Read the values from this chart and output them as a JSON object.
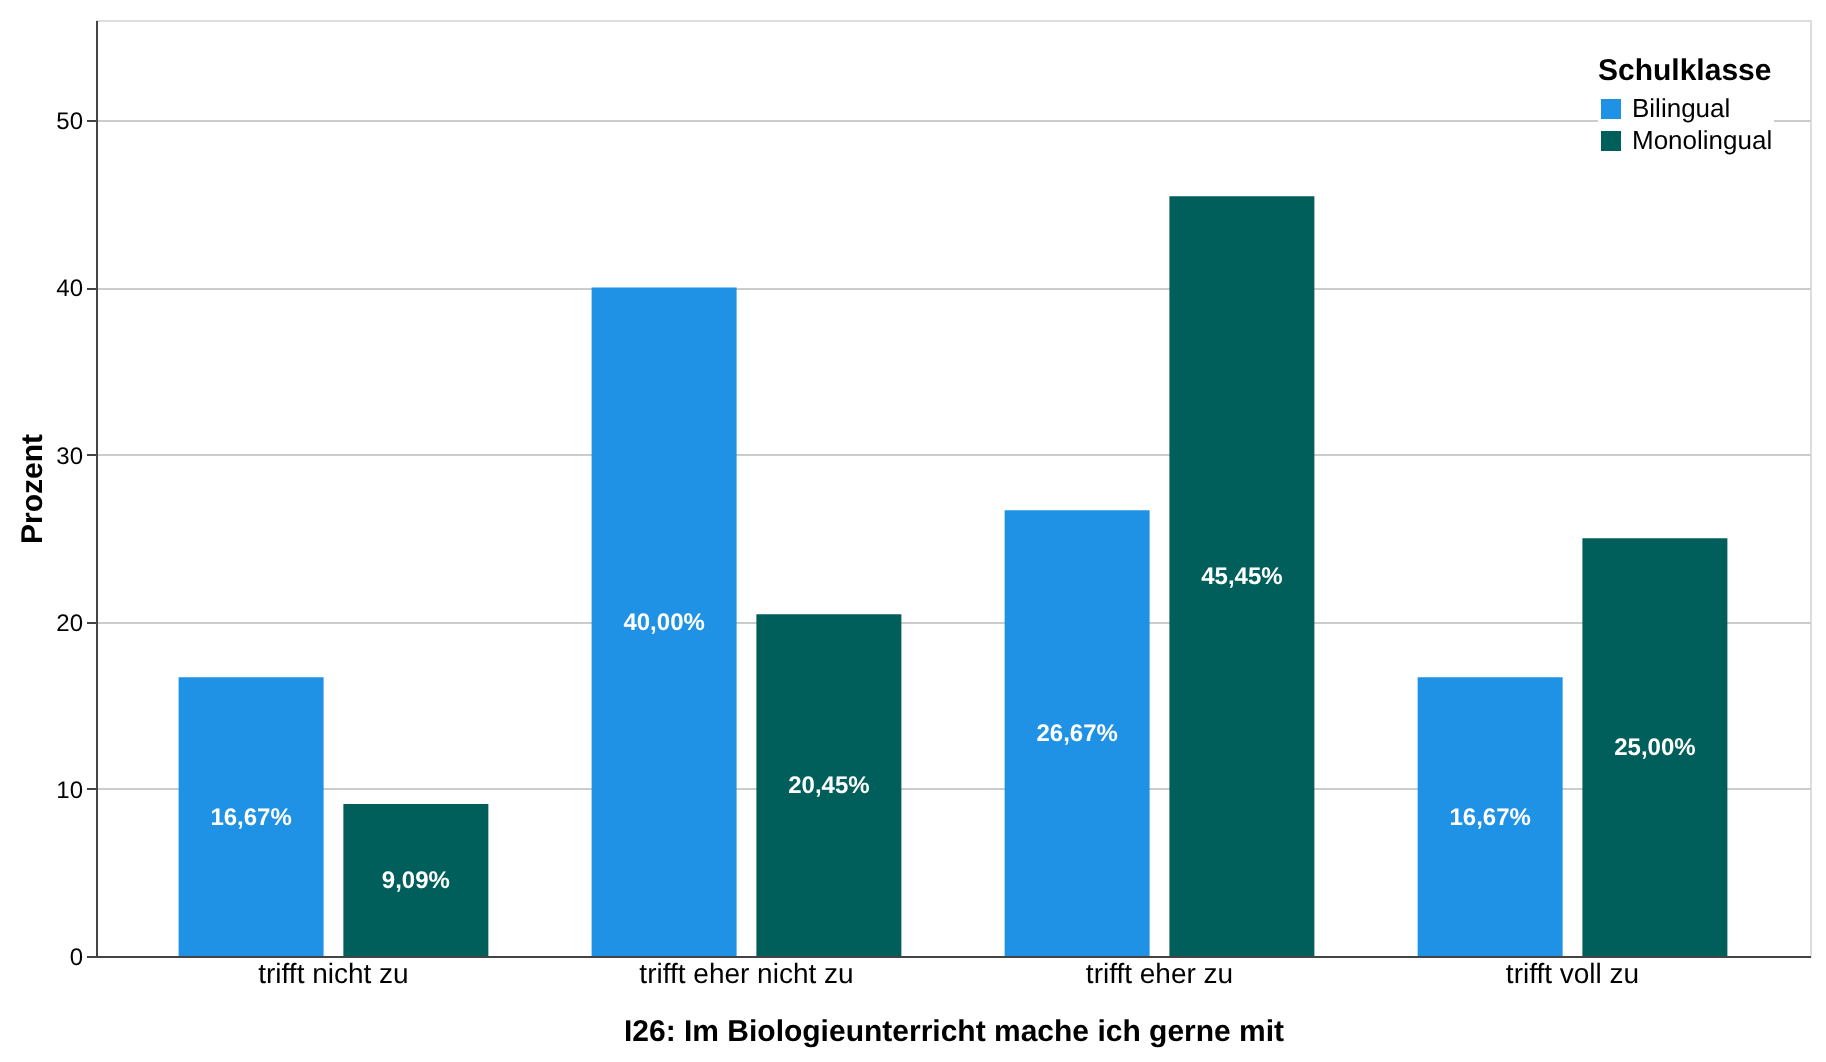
{
  "chart_data": {
    "type": "bar",
    "xlabel": "I26: Im Biologieunterricht mache ich gerne mit",
    "ylabel": "Prozent",
    "legend_title": "Schulklasse",
    "categories": [
      "trifft nicht zu",
      "trifft eher nicht zu",
      "trifft eher zu",
      "trifft voll zu"
    ],
    "series": [
      {
        "name": "Bilingual",
        "color": "#1f92e6",
        "values": [
          16.67,
          40.0,
          26.67,
          16.67
        ],
        "value_labels": [
          "16,67%",
          "40,00%",
          "26,67%",
          "16,67%"
        ]
      },
      {
        "name": "Monolingual",
        "color": "#005f5a",
        "values": [
          9.09,
          20.45,
          45.45,
          25.0
        ],
        "value_labels": [
          "9,09%",
          "20,45%",
          "45,45%",
          "25,00%"
        ]
      }
    ],
    "ylim": [
      0,
      56
    ],
    "yticks": [
      0,
      10,
      20,
      30,
      40,
      50
    ],
    "grid": "y",
    "legend": "top right"
  }
}
